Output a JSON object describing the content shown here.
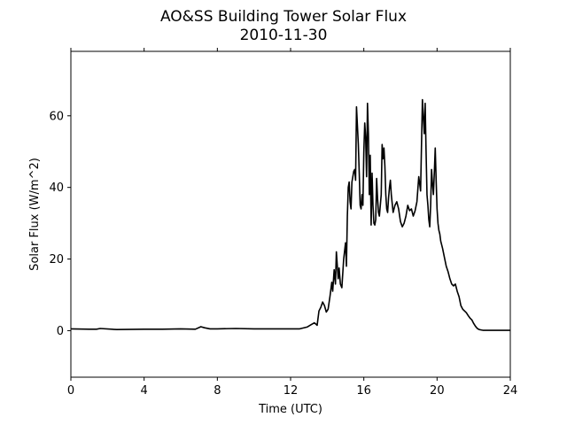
{
  "chart_data": {
    "type": "line",
    "title": "AO&SS Building Tower Solar Flux",
    "subtitle": "2010-11-30",
    "xlabel": "Time (UTC)",
    "ylabel": "Solar Flux (W/m^2)",
    "xlim": [
      0,
      24
    ],
    "ylim": [
      -13,
      78
    ],
    "xticks": [
      0,
      4,
      8,
      12,
      16,
      20,
      24
    ],
    "yticks": [
      0,
      20,
      40,
      60
    ],
    "grid": false,
    "legend": "none",
    "line_color": "#000000",
    "series": [
      {
        "x": [
          0,
          1,
          1.4,
          1.6,
          2.5,
          4,
          5,
          6,
          6.8,
          7.1,
          7.3,
          7.6,
          8,
          9,
          10,
          10.5,
          11,
          12,
          12.5,
          12.9,
          13.1,
          13.3,
          13.45,
          13.55,
          13.65,
          13.75,
          13.85,
          13.95,
          14.05,
          14.15,
          14.25,
          14.3,
          14.38,
          14.45,
          14.5,
          14.6,
          14.65,
          14.72,
          14.8,
          14.9,
          15.0,
          15.05,
          15.1,
          15.15,
          15.2,
          15.25,
          15.3,
          15.35,
          15.4,
          15.45,
          15.5,
          15.55,
          15.6,
          15.7,
          15.75,
          15.8,
          15.85,
          15.9,
          15.95,
          16.0,
          16.05,
          16.1,
          16.15,
          16.2,
          16.25,
          16.3,
          16.35,
          16.4,
          16.45,
          16.5,
          16.55,
          16.6,
          16.65,
          16.7,
          16.75,
          16.8,
          16.85,
          16.9,
          16.95,
          17.0,
          17.05,
          17.1,
          17.15,
          17.2,
          17.25,
          17.3,
          17.35,
          17.4,
          17.45,
          17.5,
          17.6,
          17.7,
          17.8,
          17.9,
          18.0,
          18.1,
          18.2,
          18.3,
          18.4,
          18.5,
          18.6,
          18.7,
          18.8,
          18.9,
          19.0,
          19.1,
          19.2,
          19.3,
          19.35,
          19.4,
          19.45,
          19.5,
          19.55,
          19.6,
          19.65,
          19.7,
          19.75,
          19.8,
          19.85,
          19.9,
          19.95,
          20.0,
          20.05,
          20.1,
          20.15,
          20.2,
          20.3,
          20.4,
          20.5,
          20.6,
          20.7,
          20.8,
          20.9,
          21.0,
          21.1,
          21.2,
          21.3,
          21.4,
          21.5,
          21.6,
          21.7,
          21.8,
          21.9,
          22.0,
          22.1,
          22.2,
          22.3,
          22.4,
          22.5,
          22.6,
          22.8,
          23.0,
          23.5,
          24
        ],
        "values": [
          0.5,
          0.4,
          0.4,
          0.6,
          0.3,
          0.4,
          0.4,
          0.5,
          0.4,
          1.1,
          0.8,
          0.5,
          0.5,
          0.6,
          0.5,
          0.5,
          0.5,
          0.5,
          0.5,
          1.0,
          1.6,
          2.2,
          1.5,
          5.5,
          6.5,
          8.0,
          7.0,
          5.2,
          6.0,
          9.5,
          13.5,
          11.0,
          17.0,
          13.0,
          22.0,
          14.5,
          17.5,
          13.0,
          12.0,
          20.0,
          24.5,
          18.0,
          32.0,
          40.0,
          41.5,
          36.0,
          34.0,
          41.5,
          43.0,
          44.5,
          45.0,
          42.0,
          62.5,
          52.0,
          44.0,
          35.0,
          34.0,
          38.0,
          35.0,
          50.0,
          58.0,
          54.0,
          43.0,
          63.5,
          55.0,
          38.0,
          49.0,
          29.5,
          44.0,
          35.0,
          30.0,
          29.5,
          31.0,
          42.5,
          37.0,
          33.0,
          32.0,
          35.0,
          38.0,
          52.0,
          48.0,
          51.0,
          46.0,
          38.0,
          34.0,
          33.0,
          37.0,
          40.0,
          42.0,
          38.0,
          33.0,
          35.0,
          36.0,
          34.0,
          30.5,
          29.0,
          30.0,
          32.0,
          35.0,
          33.5,
          34.0,
          32.0,
          33.5,
          36.0,
          43.0,
          39.0,
          64.5,
          55.0,
          63.5,
          50.0,
          38.0,
          35.0,
          31.0,
          29.0,
          35.0,
          45.0,
          41.0,
          38.0,
          44.0,
          51.0,
          42.0,
          34.0,
          30.0,
          28.0,
          27.0,
          25.0,
          23.0,
          20.5,
          18.0,
          16.5,
          14.5,
          13.0,
          12.5,
          13.0,
          11.0,
          9.5,
          7.0,
          6.0,
          5.5,
          5.0,
          4.2,
          3.5,
          3.0,
          2.0,
          1.2,
          0.6,
          0.3,
          0.2,
          0.1,
          0.1,
          0.1,
          0.1,
          0.1,
          0.1
        ]
      }
    ]
  }
}
